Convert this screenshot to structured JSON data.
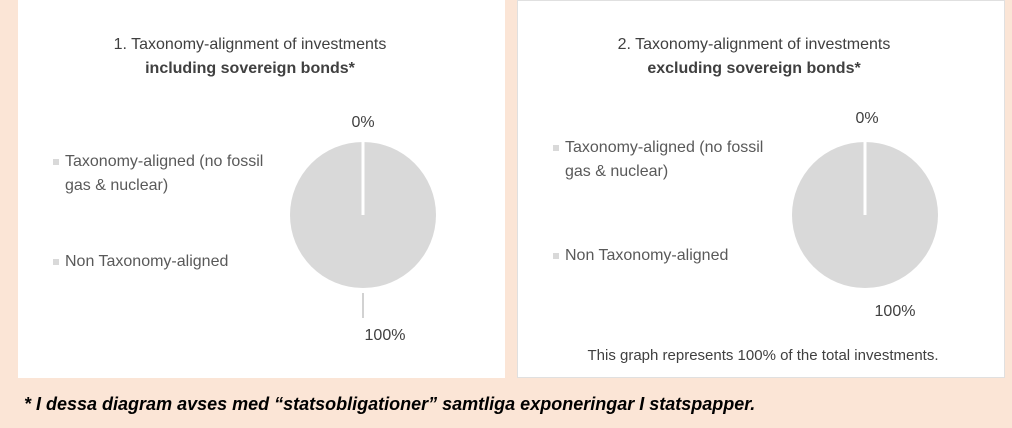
{
  "chart_data": [
    {
      "type": "pie",
      "title": "1. Taxonomy-alignment of investments",
      "subtitle": "including sovereign bonds*",
      "categories": [
        "Taxonomy-aligned (no fossil gas & nuclear)",
        "Non Taxonomy-aligned"
      ],
      "values": [
        0,
        100
      ],
      "value_labels": [
        "0%",
        "100%"
      ],
      "colors": [
        "#d9d9d9",
        "#d9d9d9"
      ]
    },
    {
      "type": "pie",
      "title": "2. Taxonomy-alignment of investments",
      "subtitle": "excluding sovereign bonds*",
      "categories": [
        "Taxonomy-aligned (no fossil gas & nuclear)",
        "Non Taxonomy-aligned"
      ],
      "values": [
        0,
        100
      ],
      "value_labels": [
        "0%",
        "100%"
      ],
      "colors": [
        "#d9d9d9",
        "#d9d9d9"
      ],
      "note": "This graph represents 100% of the total investments."
    }
  ],
  "footnote": "*   I dessa diagram avses med “statsobligationer” samtliga exponeringar I statspapper."
}
